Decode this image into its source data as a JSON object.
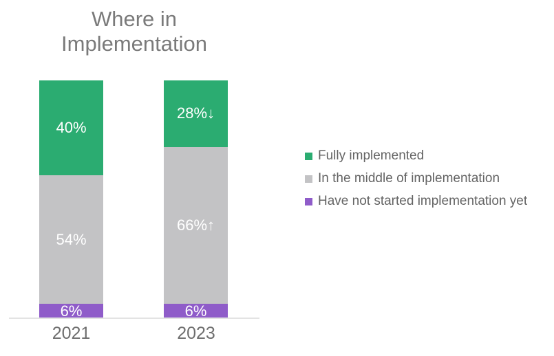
{
  "chart_data": {
    "type": "bar",
    "stacked": true,
    "title": "Where in\nImplementation",
    "categories": [
      "2021",
      "2023"
    ],
    "series": [
      {
        "name": "Fully implemented",
        "color": "#2bac71",
        "values": [
          40,
          28
        ],
        "labels": [
          "40%",
          "28%↓"
        ]
      },
      {
        "name": "In the middle of implementation",
        "color": "#c3c3c5",
        "values": [
          54,
          66
        ],
        "labels": [
          "54%",
          "66%↑"
        ]
      },
      {
        "name": "Have not started implementation yet",
        "color": "#8f5cc9",
        "values": [
          6,
          6
        ],
        "labels": [
          "6%",
          "6%"
        ]
      }
    ],
    "ylim": [
      0,
      100
    ],
    "grid": false,
    "legend_position": "right",
    "label_text_color": "#ffffff",
    "title_color": "#7a7a7a"
  }
}
